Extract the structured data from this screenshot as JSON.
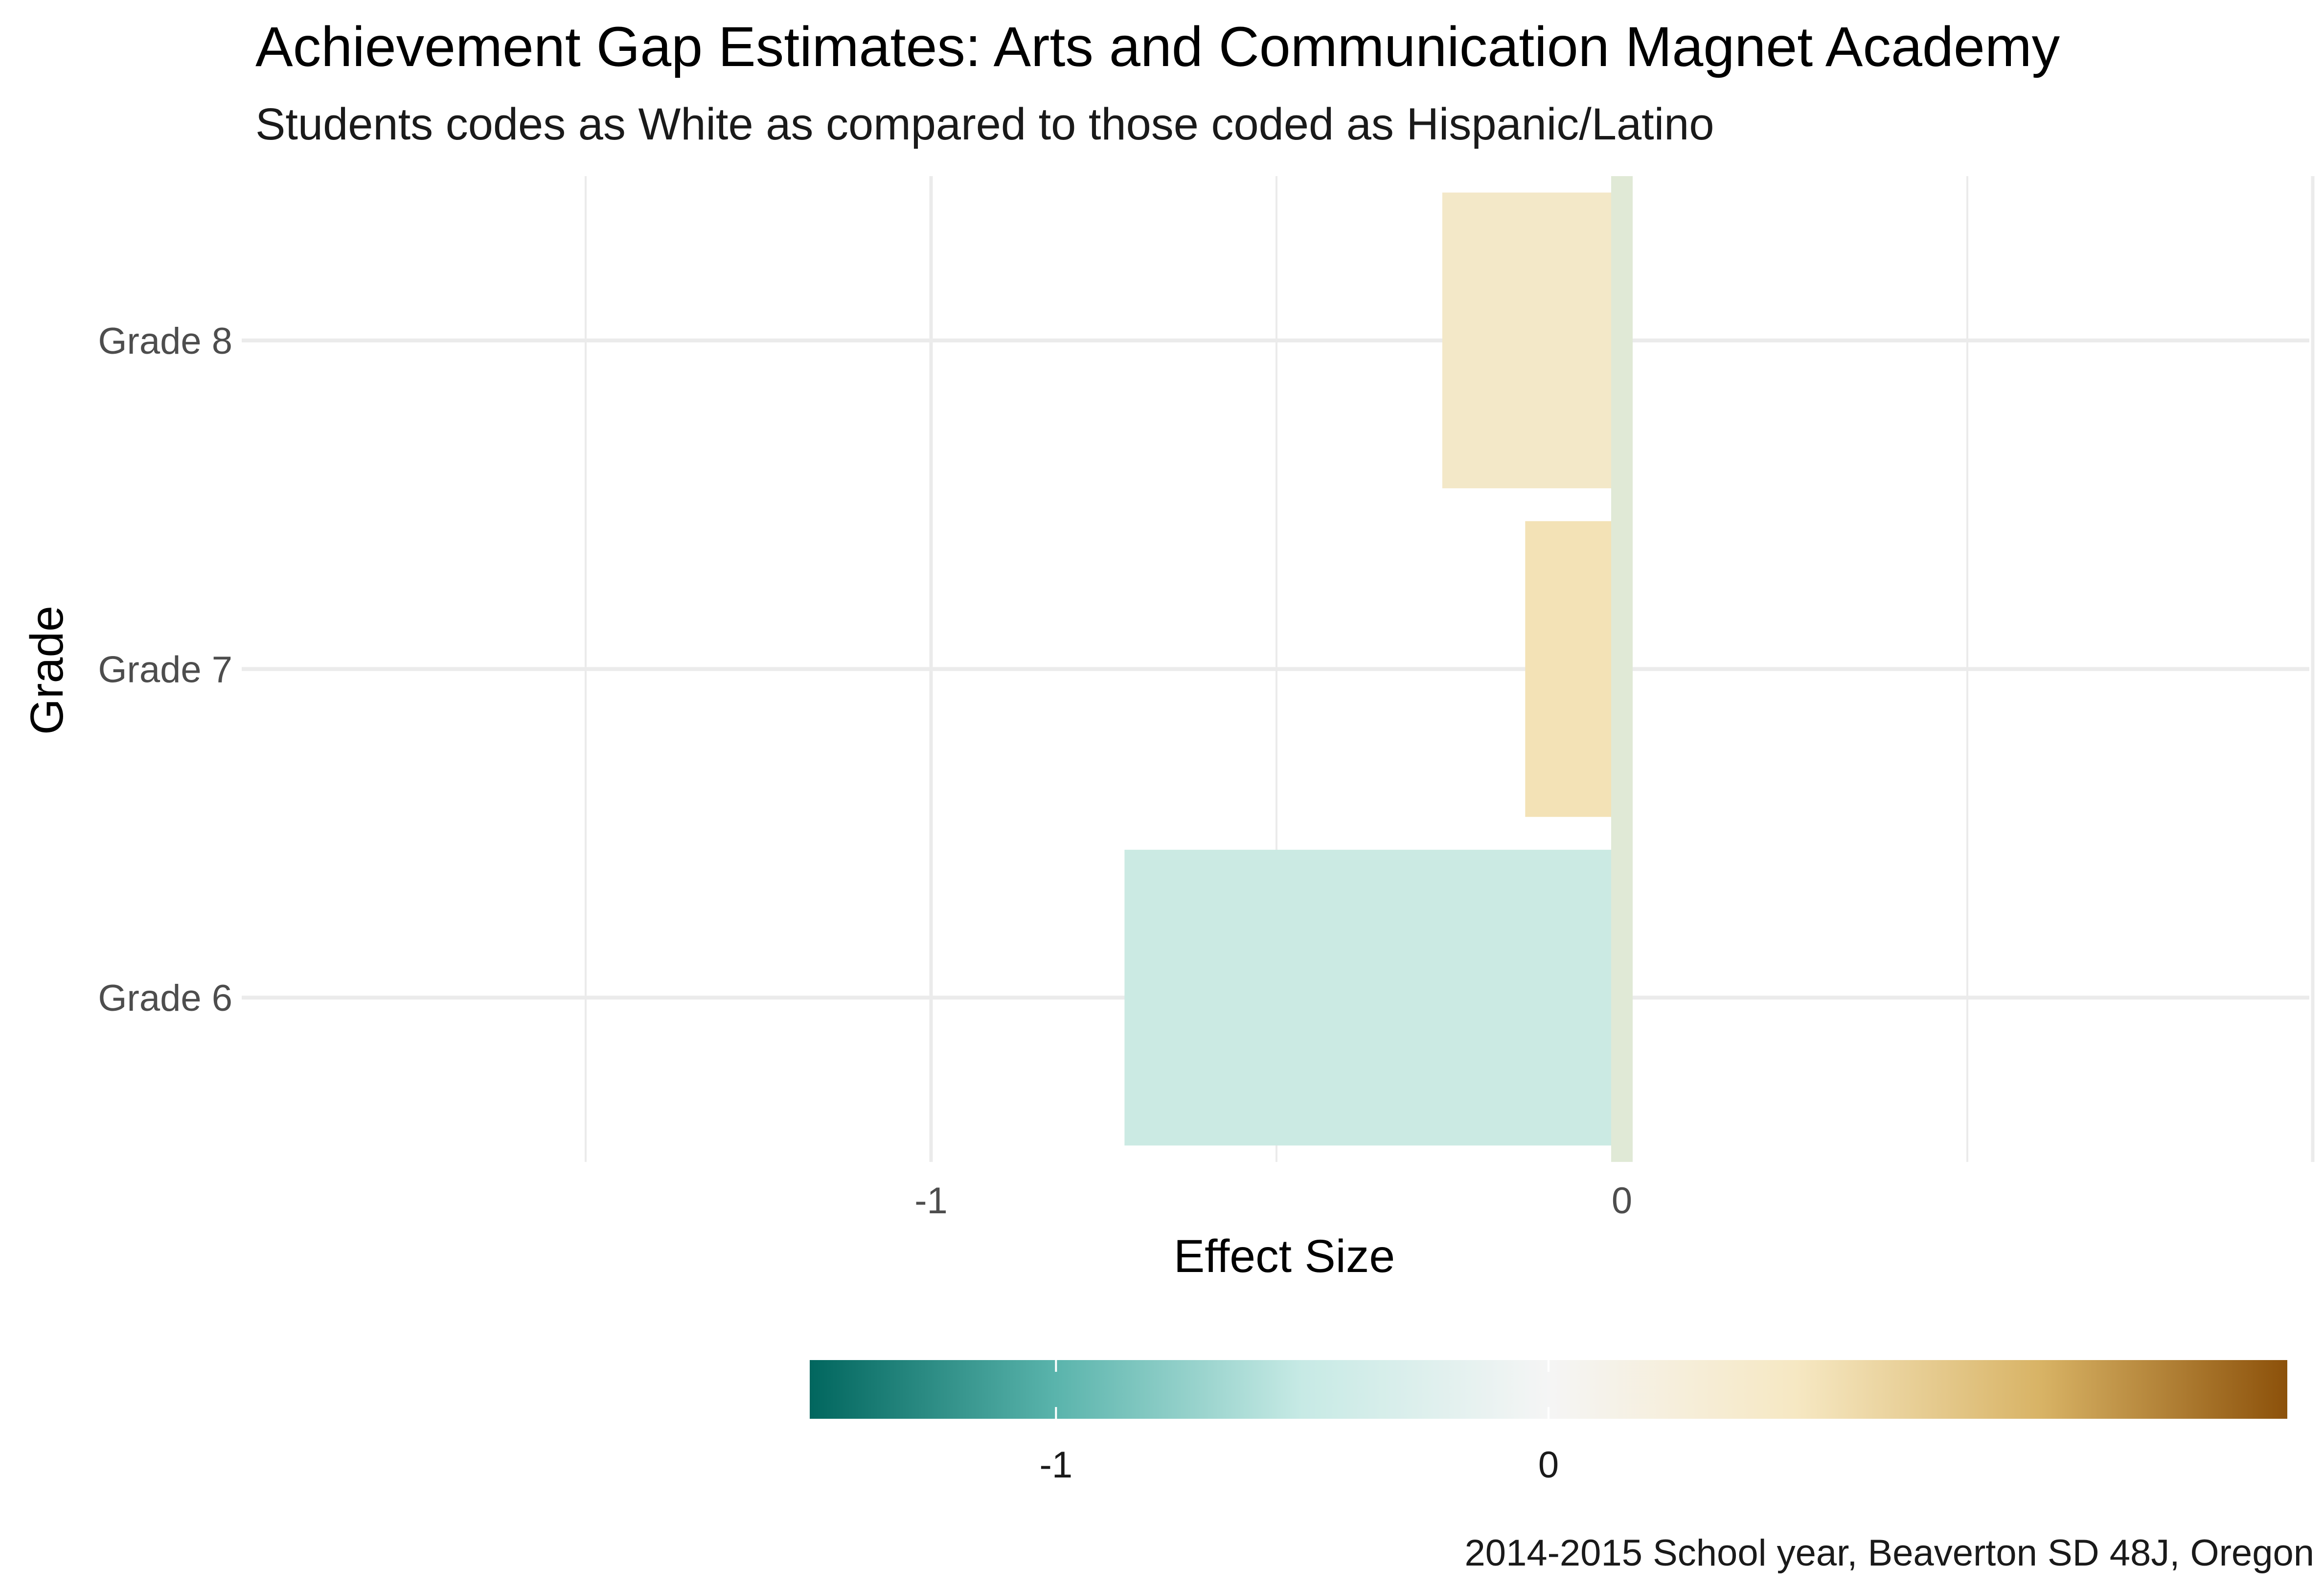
{
  "chart_data": {
    "type": "bar",
    "orientation": "horizontal",
    "title": "Achievement Gap Estimates: Arts and Communication Magnet Academy",
    "subtitle": "Students codes as White as compared to those coded as Hispanic/Latino",
    "xlabel": "Effect Size",
    "ylabel": "Grade",
    "caption": "2014-2015 School year, Beaverton SD 48J, Oregon",
    "categories": [
      "Grade 6",
      "Grade 7",
      "Grade 8"
    ],
    "values": [
      -0.72,
      -0.14,
      -0.26
    ],
    "bar_colors": [
      "#cbeae3",
      "#f3e2b6",
      "#f3e8c8"
    ],
    "xlim": [
      -1.5,
      1.0
    ],
    "x_ticks": [
      -1,
      0
    ],
    "x_tick_labels": [
      "-1",
      "0"
    ],
    "grid": true,
    "zero_line_color": "#e0e9d6",
    "legend": {
      "type": "colorbar",
      "position": "bottom",
      "range": [
        -1.5,
        1.5
      ],
      "ticks": [
        -1,
        0
      ],
      "tick_labels": [
        "-1",
        "0"
      ],
      "colors": [
        "#01665e",
        "#5ab4ac",
        "#c7eae5",
        "#f5f5f5",
        "#f6e8c3",
        "#d8b365",
        "#8c510a"
      ]
    }
  }
}
